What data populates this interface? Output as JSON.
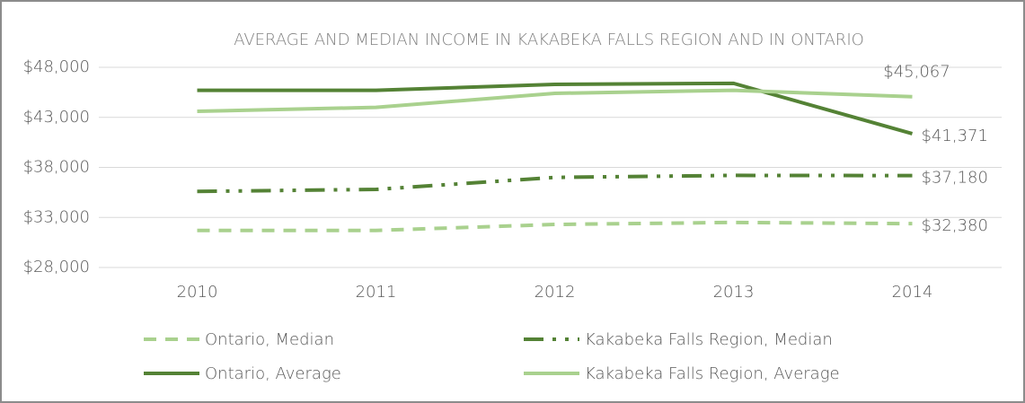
{
  "chart_data": {
    "type": "line",
    "title": "AVERAGE AND MEDIAN INCOME IN KAKABEKA FALLS REGION AND IN ONTARIO",
    "categories": [
      "2010",
      "2011",
      "2012",
      "2013",
      "2014"
    ],
    "series": [
      {
        "name": "Ontario, Median",
        "color": "#a9d18e",
        "dash": "dashed",
        "values": [
          31700,
          31700,
          32300,
          32500,
          32380
        ],
        "value_labels": [
          null,
          null,
          null,
          null,
          "$32,380"
        ]
      },
      {
        "name": "Kakabeka Falls Region, Median",
        "color": "#548235",
        "dash": "dash-dot-dot",
        "values": [
          35600,
          35800,
          37000,
          37200,
          37180
        ],
        "value_labels": [
          null,
          null,
          null,
          null,
          "$37,180"
        ]
      },
      {
        "name": "Ontario, Average",
        "color": "#548235",
        "dash": "solid",
        "values": [
          45700,
          45700,
          46300,
          46400,
          41371
        ],
        "value_labels": [
          null,
          null,
          null,
          null,
          "$41,371"
        ]
      },
      {
        "name": "Kakabeka Falls Region, Average",
        "color": "#a9d18e",
        "dash": "solid",
        "values": [
          43600,
          44000,
          45400,
          45700,
          45067
        ],
        "value_labels": [
          null,
          null,
          null,
          null,
          "$45,067"
        ]
      }
    ],
    "ylim": [
      28000,
      48000
    ],
    "yticks": [
      {
        "value": 28000,
        "label": "$28,000"
      },
      {
        "value": 33000,
        "label": "$33,000"
      },
      {
        "value": 38000,
        "label": "$38,000"
      },
      {
        "value": 43000,
        "label": "$43,000"
      },
      {
        "value": 48000,
        "label": "$48,000"
      }
    ],
    "grid": true,
    "legend": "bottom"
  }
}
